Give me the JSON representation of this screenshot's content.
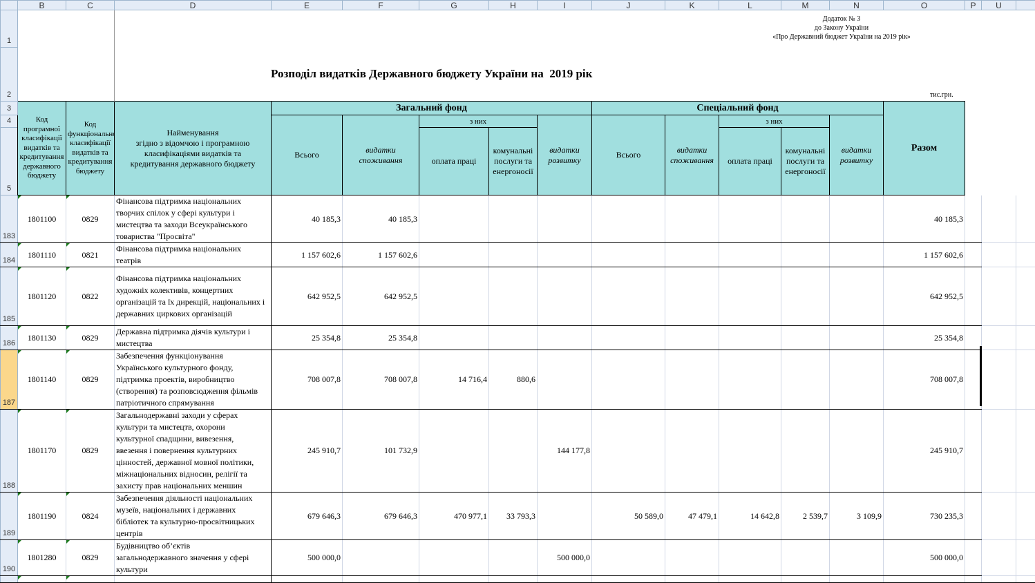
{
  "columns": [
    "B",
    "C",
    "D",
    "E",
    "F",
    "G",
    "H",
    "I",
    "J",
    "K",
    "L",
    "M",
    "N",
    "O",
    "P",
    "U"
  ],
  "appendix": [
    "Додаток № 3",
    "до Закону України",
    "«Про Державний бюджет України на 2019 рік»"
  ],
  "title": "Розподіл видатків Державного бюджету України на  2019 рік",
  "units": "тис.грн.",
  "header": {
    "prog_code": "Код програмної класифікації видатків та кредитування державного бюджету",
    "func_code": "Код функціональної класифікації видатків та кредитування бюджету",
    "name": "Найменування\nзгідно з відомчою і програмною класифікаціями видатків та кредитування державного бюджету",
    "general_fund": "Загальний фонд",
    "special_fund": "Спеціальний фонд",
    "total": "Разом",
    "all": "Всього",
    "consumption": "видатки споживання",
    "of_which": "з них",
    "salary": "оплата праці",
    "utilities": "комунальні послуги та енергоносії",
    "development": "видатки розвитку"
  },
  "row_numbers": {
    "r1": "1",
    "r2": "2",
    "r3": "3",
    "r4": "4",
    "r5": "5"
  },
  "selected_row": "187",
  "rows": [
    {
      "row": "183",
      "prog": "1801100",
      "func": "0829",
      "name": "Фінансова підтримка національних\nтворчих спілок у сфері культури і\nмистецтва та заходи Всеукраїнського\nтовариства \"Просвіта\"",
      "values": [
        "40 185,3",
        "40 185,3",
        "",
        "",
        "",
        "",
        "",
        "",
        "",
        "",
        "40 185,3"
      ]
    },
    {
      "row": "184",
      "prog": "1801110",
      "func": "0821",
      "name": "Фінансова підтримка національних\nтеатрів",
      "values": [
        "1 157 602,6",
        "1 157 602,6",
        "",
        "",
        "",
        "",
        "",
        "",
        "",
        "",
        "1 157 602,6"
      ]
    },
    {
      "row": "185",
      "prog": "1801120",
      "func": "0822",
      "name": "Фінансова підтримка національних\nхудожніх колективів, концертних\nорганізацій та їх дирекцій, національних і\nдержавних циркових організацій",
      "values": [
        "642 952,5",
        "642 952,5",
        "",
        "",
        "",
        "",
        "",
        "",
        "",
        "",
        "642 952,5"
      ]
    },
    {
      "row": "186",
      "prog": "1801130",
      "func": "0829",
      "name": "Державна підтримка діячів культури і\nмистецтва",
      "values": [
        "25 354,8",
        "25 354,8",
        "",
        "",
        "",
        "",
        "",
        "",
        "",
        "",
        "25 354,8"
      ]
    },
    {
      "row": "187",
      "prog": "1801140",
      "func": "0829",
      "name": "Забезпечення функціонування\nУкраїнського культурного фонду,\nпідтримка проектів, виробництво\n(створення) та розповсюдження фільмів\nпатріотичного спрямування",
      "values": [
        "708 007,8",
        "708 007,8",
        "14 716,4",
        "880,6",
        "",
        "",
        "",
        "",
        "",
        "",
        "708 007,8"
      ]
    },
    {
      "row": "188",
      "prog": "1801170",
      "func": "0829",
      "name": "Загальнодержавні заходи у сферах\nкультури та мистецтв, охорони\nкультурної спадщини, вивезення,\nввезення і повернення культурних\nцінностей, державної мовної політики,\nміжнаціональних відносин, релігії та\nзахисту прав національних меншин",
      "values": [
        "245 910,7",
        "101 732,9",
        "",
        "",
        "144 177,8",
        "",
        "",
        "",
        "",
        "",
        "245 910,7"
      ]
    },
    {
      "row": "189",
      "prog": "1801190",
      "func": "0824",
      "name": "Забезпечення діяльності національних\nмузеїв, національних і державних\nбібліотек та культурно-просвітницьких\nцентрів",
      "values": [
        "679 646,3",
        "679 646,3",
        "470 977,1",
        "33 793,3",
        "",
        "50 589,0",
        "47 479,1",
        "14 642,8",
        "2 539,7",
        "3 109,9",
        "730 235,3"
      ]
    },
    {
      "row": "190",
      "prog": "1801280",
      "func": "0829",
      "name": "Будівництво об’єктів\nзагальнодержавного значення у сфері\nкультури",
      "values": [
        "500 000,0",
        "",
        "",
        "",
        "500 000,0",
        "",
        "",
        "",
        "",
        "",
        "500 000,0"
      ]
    }
  ]
}
